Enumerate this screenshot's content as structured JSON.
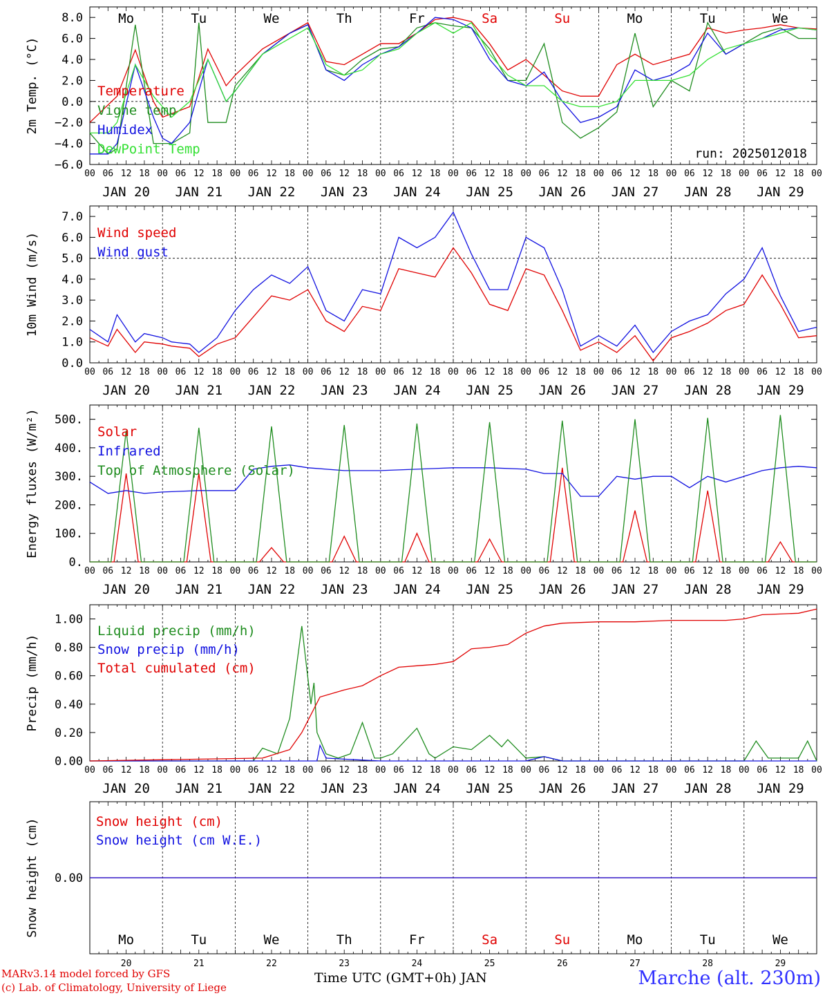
{
  "colors": {
    "red": "#e00000",
    "darkgreen": "#1e8c1e",
    "blue": "#1010e0",
    "lightgreen": "#33e033",
    "weekday": "#000000",
    "weekend": "#e00000"
  },
  "days": [
    "JAN 20",
    "JAN 21",
    "JAN 22",
    "JAN 23",
    "JAN 24",
    "JAN 25",
    "JAN 26",
    "JAN 27",
    "JAN 28",
    "JAN 29"
  ],
  "day_numbers": [
    "20",
    "21",
    "22",
    "23",
    "24",
    "25",
    "26",
    "27",
    "28",
    "29"
  ],
  "weekdays": [
    "Mo",
    "Tu",
    "We",
    "Th",
    "Fr",
    "Sa",
    "Su",
    "Mo",
    "Tu",
    "We"
  ],
  "weekend_flags": [
    false,
    false,
    false,
    false,
    false,
    true,
    true,
    false,
    false,
    false
  ],
  "hour_ticks": [
    "00",
    "06",
    "12",
    "18"
  ],
  "hour_tick_end": "00",
  "footer": {
    "credit_line1": "MARv3.14 model forced by GFS",
    "credit_line2": "(c) Lab. of Climatology, University of Liege",
    "xlabel": "Time UTC (GMT+0h) JAN",
    "station": "Marche (alt. 230m)"
  },
  "chart_data": [
    {
      "type": "line",
      "ylabel": "2m Temp. (°C)",
      "ylim": [
        -6,
        9
      ],
      "yticks": [
        "8.0",
        "6.0",
        "4.0",
        "2.0",
        "0.0",
        "−2.0",
        "−4.0",
        "−6.0"
      ],
      "ytick_values": [
        8,
        6,
        4,
        2,
        0,
        -2,
        -4,
        -6
      ],
      "hline": 0,
      "annotation": "run: 2025012018",
      "x_unit": "hours since JAN 20 00UTC",
      "series": [
        {
          "name": "Temperature",
          "color": "red",
          "x": [
            0,
            9,
            15,
            21,
            24,
            33,
            39,
            45,
            48,
            57,
            66,
            72,
            78,
            84,
            90,
            96,
            102,
            108,
            114,
            120,
            126,
            132,
            138,
            144,
            150,
            156,
            162,
            168,
            174,
            180,
            186,
            192,
            198,
            204,
            210,
            216,
            222,
            228,
            234,
            240
          ],
          "y": [
            -2,
            0.5,
            4.9,
            0,
            -1.5,
            -0.5,
            5,
            1.5,
            2.5,
            5,
            6.5,
            7.5,
            3.8,
            3.5,
            4.5,
            5.5,
            5.5,
            6.5,
            7.8,
            8,
            7.6,
            5.5,
            3,
            4,
            2.5,
            1,
            0.5,
            0.5,
            3.5,
            4.5,
            3.5,
            4,
            4.5,
            7,
            6.5,
            6.8,
            7,
            7.3,
            7,
            6.9
          ]
        },
        {
          "name": "Vigne temp",
          "color": "darkgreen",
          "x": [
            0,
            6,
            9,
            15,
            21,
            24,
            27,
            33,
            36,
            39,
            45,
            48,
            57,
            66,
            72,
            78,
            84,
            90,
            96,
            102,
            108,
            114,
            120,
            126,
            132,
            138,
            144,
            150,
            156,
            162,
            168,
            174,
            180,
            186,
            192,
            198,
            204,
            210,
            216,
            222,
            228,
            234,
            240
          ],
          "y": [
            -3,
            -5,
            -4.5,
            7.3,
            -4,
            -4,
            -4,
            -3,
            7.5,
            -2,
            -2,
            1.5,
            4.5,
            6.5,
            7.3,
            3,
            2.5,
            4,
            5,
            5.2,
            7,
            7.5,
            7.2,
            7,
            5,
            2,
            2,
            5.5,
            -2,
            -3.5,
            -2.5,
            -1,
            6.5,
            -0.5,
            2,
            1,
            7.5,
            4.5,
            5.5,
            6.5,
            7,
            6,
            6
          ]
        },
        {
          "name": "Humidex",
          "color": "blue",
          "x": [
            0,
            6,
            9,
            15,
            21,
            24,
            27,
            33,
            39,
            45,
            48,
            57,
            66,
            72,
            78,
            84,
            90,
            96,
            102,
            108,
            114,
            120,
            126,
            132,
            138,
            144,
            150,
            156,
            162,
            168,
            174,
            180,
            186,
            192,
            198,
            204,
            210,
            216,
            222,
            228,
            234,
            240
          ],
          "y": [
            -5,
            -5,
            -4,
            3.5,
            -1.5,
            -3.5,
            -4,
            -2,
            4,
            0,
            1,
            4.5,
            6.5,
            7.3,
            3,
            2,
            3.5,
            4.5,
            5.2,
            6.5,
            8,
            7.8,
            7,
            4,
            2,
            1.5,
            2.8,
            0,
            -2,
            -1.5,
            -0.5,
            3,
            2,
            2.5,
            3.5,
            6.5,
            4.5,
            5.5,
            6,
            6.8,
            7,
            6.8
          ]
        },
        {
          "name": "DewPoint Temp",
          "color": "lightgreen",
          "x": [
            0,
            6,
            9,
            15,
            21,
            24,
            27,
            33,
            39,
            45,
            48,
            57,
            66,
            72,
            78,
            84,
            90,
            96,
            102,
            108,
            114,
            120,
            126,
            132,
            138,
            144,
            150,
            156,
            162,
            168,
            174,
            180,
            186,
            192,
            198,
            204,
            210,
            216,
            222,
            228,
            234,
            240
          ],
          "y": [
            -3,
            -3,
            -2,
            3.5,
            0.5,
            -0.5,
            -1.5,
            0,
            4,
            0,
            1,
            4.5,
            6,
            7,
            3.5,
            2.5,
            3,
            4.5,
            5,
            6.5,
            7.5,
            6.5,
            7.5,
            4.5,
            2.5,
            1.5,
            1.5,
            0,
            -0.5,
            -0.5,
            0,
            2,
            2,
            2,
            2.5,
            4,
            5,
            5.5,
            6,
            6.5,
            7,
            6.8
          ]
        }
      ],
      "legend": [
        "Temperature",
        "Vigne temp",
        "Humidex",
        "DewPoint Temp"
      ],
      "legend_placement": "left"
    },
    {
      "type": "line",
      "ylabel": "10m Wind (m/s)",
      "ylim": [
        0,
        7.5
      ],
      "yticks": [
        "7.0",
        "6.0",
        "5.0",
        "4.0",
        "3.0",
        "2.0",
        "1.0",
        "0.0"
      ],
      "ytick_values": [
        7,
        6,
        5,
        4,
        3,
        2,
        1,
        0
      ],
      "hline": 5,
      "x_unit": "hours since JAN 20 00UTC",
      "series": [
        {
          "name": "Wind speed",
          "color": "red",
          "x": [
            0,
            6,
            9,
            15,
            18,
            24,
            27,
            33,
            36,
            42,
            48,
            54,
            60,
            66,
            72,
            78,
            84,
            90,
            96,
            102,
            108,
            114,
            120,
            126,
            132,
            138,
            144,
            150,
            156,
            162,
            168,
            174,
            180,
            186,
            192,
            198,
            204,
            210,
            216,
            222,
            228,
            234,
            240
          ],
          "y": [
            1.2,
            0.8,
            1.6,
            0.5,
            1,
            0.9,
            0.8,
            0.7,
            0.3,
            0.9,
            1.2,
            2.2,
            3.2,
            3,
            3.5,
            2,
            1.5,
            2.7,
            2.5,
            4.5,
            4.3,
            4.1,
            5.5,
            4.3,
            2.8,
            2.5,
            4.5,
            4.2,
            2.5,
            0.6,
            1,
            0.5,
            1.3,
            0.1,
            1.2,
            1.5,
            1.9,
            2.5,
            2.8,
            4.2,
            2.8,
            1.2,
            1.3
          ]
        },
        {
          "name": "Wind gust",
          "color": "blue",
          "x": [
            0,
            6,
            9,
            15,
            18,
            24,
            27,
            33,
            36,
            42,
            48,
            54,
            60,
            66,
            72,
            78,
            84,
            90,
            96,
            102,
            108,
            114,
            120,
            126,
            132,
            138,
            144,
            150,
            156,
            162,
            168,
            174,
            180,
            186,
            192,
            198,
            204,
            210,
            216,
            222,
            228,
            234,
            240
          ],
          "y": [
            1.6,
            1,
            2.3,
            1,
            1.4,
            1.2,
            1,
            0.9,
            0.5,
            1.2,
            2.5,
            3.5,
            4.2,
            3.8,
            4.6,
            2.5,
            2,
            3.5,
            3.3,
            6,
            5.5,
            6,
            7.2,
            5.2,
            3.5,
            3.5,
            6,
            5.5,
            3.5,
            0.8,
            1.3,
            0.8,
            1.8,
            0.5,
            1.5,
            2,
            2.3,
            3.3,
            4,
            5.5,
            3.2,
            1.5,
            1.7
          ]
        }
      ],
      "legend": [
        "Wind speed",
        "Wind gust"
      ],
      "legend_placement": "top-left"
    },
    {
      "type": "line",
      "ylabel": "Energy fluxes (W/m²)",
      "ylim": [
        0,
        550
      ],
      "yticks": [
        "500.",
        "400.",
        "300.",
        "200.",
        "100.",
        "0."
      ],
      "ytick_values": [
        500,
        400,
        300,
        200,
        100,
        0
      ],
      "x_unit": "hours since JAN 20 00UTC",
      "series": [
        {
          "name": "Solar",
          "color": "red",
          "x": [
            0,
            8,
            12,
            16,
            32,
            36,
            40,
            56,
            60,
            64,
            80,
            84,
            88,
            104,
            108,
            112,
            128,
            132,
            136,
            152,
            156,
            160,
            176,
            180,
            184,
            200,
            204,
            208,
            224,
            228,
            232,
            240
          ],
          "y": [
            0,
            0,
            310,
            0,
            0,
            310,
            0,
            0,
            50,
            0,
            0,
            90,
            0,
            0,
            100,
            0,
            0,
            80,
            0,
            0,
            330,
            0,
            0,
            180,
            0,
            0,
            250,
            0,
            0,
            70,
            0,
            0
          ]
        },
        {
          "name": "Infrared",
          "color": "blue",
          "x": [
            0,
            6,
            12,
            18,
            24,
            36,
            48,
            54,
            60,
            66,
            72,
            84,
            96,
            108,
            120,
            132,
            144,
            150,
            156,
            162,
            168,
            174,
            180,
            186,
            192,
            198,
            204,
            210,
            216,
            222,
            228,
            234,
            240
          ],
          "y": [
            280,
            240,
            250,
            240,
            245,
            250,
            250,
            325,
            335,
            340,
            330,
            320,
            320,
            325,
            330,
            330,
            325,
            310,
            310,
            230,
            230,
            300,
            290,
            300,
            300,
            260,
            300,
            280,
            300,
            320,
            330,
            335,
            330
          ]
        },
        {
          "name": "Top of Atmosphere (Solar)",
          "color": "darkgreen",
          "x": [
            0,
            7,
            12,
            17,
            31,
            36,
            41,
            55,
            60,
            65,
            79,
            84,
            89,
            103,
            108,
            113,
            127,
            132,
            137,
            151,
            156,
            161,
            175,
            180,
            185,
            199,
            204,
            209,
            223,
            228,
            233,
            240
          ],
          "y": [
            0,
            0,
            460,
            0,
            0,
            470,
            0,
            0,
            475,
            0,
            0,
            480,
            0,
            0,
            485,
            0,
            0,
            490,
            0,
            0,
            495,
            0,
            0,
            500,
            0,
            0,
            505,
            0,
            0,
            515,
            0,
            0
          ]
        }
      ],
      "legend": [
        "Solar",
        "Infrared",
        "Top of Atmosphere (Solar)"
      ],
      "legend_placement": "top-left"
    },
    {
      "type": "line",
      "ylabel": "Precip (mm/h)",
      "ylim": [
        0,
        1.1
      ],
      "yticks": [
        "1.00",
        "0.80",
        "0.60",
        "0.40",
        "0.20",
        "0.00"
      ],
      "ytick_values": [
        1,
        0.8,
        0.6,
        0.4,
        0.2,
        0
      ],
      "x_unit": "hours since JAN 20 00UTC",
      "series": [
        {
          "name": "Liquid precip (mm/h)",
          "color": "darkgreen",
          "x": [
            0,
            54,
            57,
            62,
            66,
            70,
            73,
            74,
            75,
            78,
            82,
            86,
            90,
            94,
            96,
            100,
            108,
            112,
            114,
            120,
            126,
            132,
            136,
            138,
            144,
            150,
            156,
            180,
            210,
            216,
            220,
            224,
            230,
            234,
            237,
            240
          ],
          "y": [
            0,
            0,
            0.09,
            0.05,
            0.3,
            0.95,
            0.4,
            0.55,
            0.2,
            0.05,
            0.02,
            0.05,
            0.27,
            0.02,
            0.02,
            0.05,
            0.23,
            0.05,
            0.02,
            0.1,
            0.08,
            0.18,
            0.1,
            0.15,
            0.02,
            0.03,
            0,
            0,
            0,
            0,
            0.14,
            0.02,
            0.02,
            0.02,
            0.14,
            0
          ]
        },
        {
          "name": "Snow precip (mm/h)",
          "color": "blue",
          "x": [
            0,
            75,
            76,
            78,
            86,
            96,
            144,
            150,
            156,
            240
          ],
          "y": [
            0,
            0,
            0.11,
            0.02,
            0.01,
            0,
            0,
            0.03,
            0,
            0
          ]
        },
        {
          "name": "Total cumulated (cm)",
          "color": "red",
          "x": [
            0,
            57,
            66,
            70,
            76,
            84,
            90,
            96,
            102,
            108,
            114,
            120,
            126,
            132,
            138,
            144,
            150,
            156,
            168,
            180,
            192,
            210,
            216,
            222,
            234,
            240
          ],
          "y": [
            0,
            0.02,
            0.08,
            0.2,
            0.45,
            0.5,
            0.53,
            0.6,
            0.66,
            0.67,
            0.68,
            0.7,
            0.79,
            0.8,
            0.82,
            0.9,
            0.95,
            0.97,
            0.98,
            0.98,
            0.99,
            0.99,
            1.0,
            1.03,
            1.04,
            1.07
          ]
        }
      ],
      "legend": [
        "Liquid precip (mm/h)",
        "Snow precip (mm/h)",
        "Total cumulated (cm)"
      ],
      "legend_placement": "top-left"
    },
    {
      "type": "line",
      "ylabel": "Snow height (cm)",
      "ylim": [
        -1,
        1
      ],
      "yticks": [
        "0.00"
      ],
      "ytick_values": [
        0
      ],
      "x_unit": "hours since JAN 20 00UTC",
      "series": [
        {
          "name": "Snow height (cm)",
          "color": "red",
          "x": [
            0,
            240
          ],
          "y": [
            0,
            0
          ]
        },
        {
          "name": "Snow height (cm W.E.)",
          "color": "blue",
          "x": [
            0,
            240
          ],
          "y": [
            0,
            0
          ]
        }
      ],
      "legend": [
        "Snow height (cm)",
        "Snow height (cm W.E.)"
      ],
      "legend_placement": "top-left"
    }
  ]
}
